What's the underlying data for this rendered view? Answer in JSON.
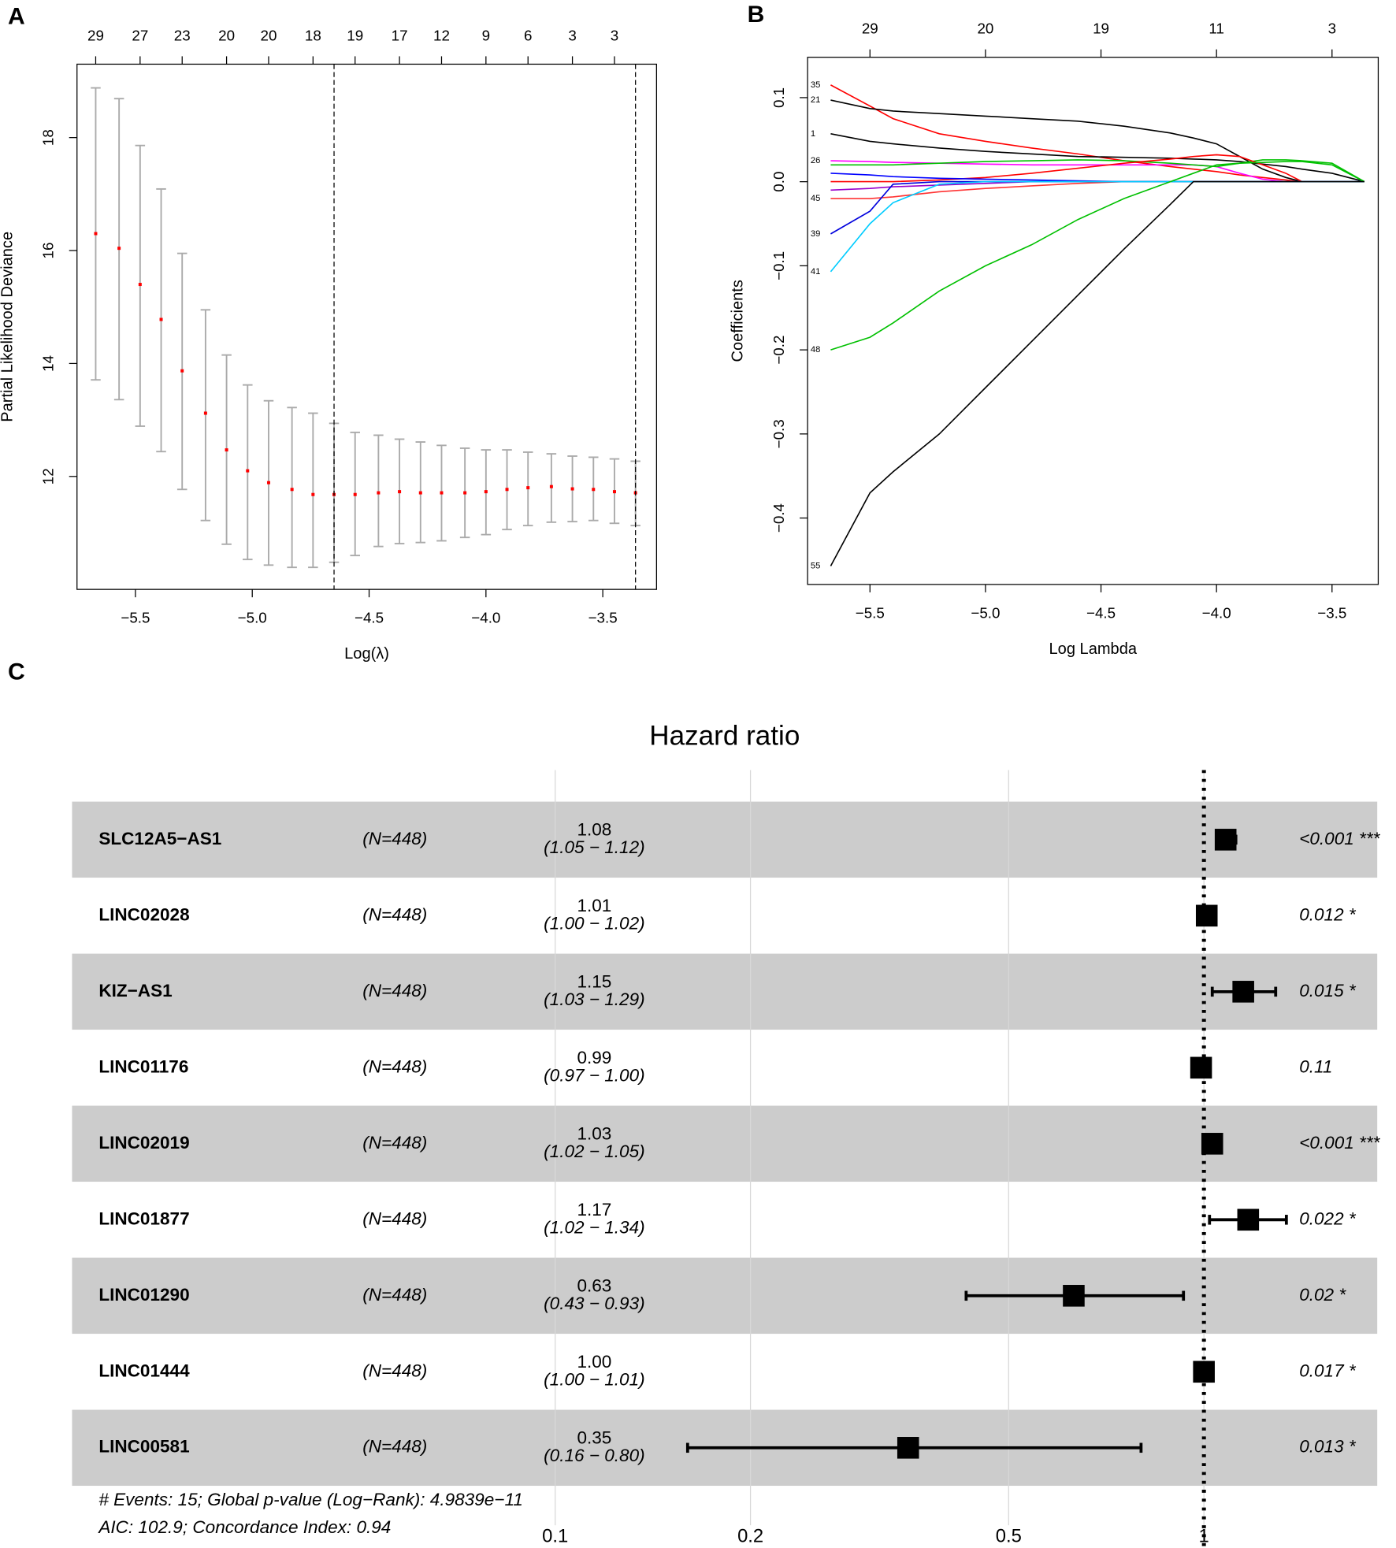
{
  "chart_data": [
    {
      "type": "errorbar",
      "panel": "A",
      "xlabel": "Log(λ)",
      "ylabel": "Partial Likelihood Deviance",
      "x": [
        -5.67,
        -5.57,
        -5.48,
        -5.39,
        -5.3,
        -5.2,
        -5.11,
        -5.02,
        -4.93,
        -4.83,
        -4.74,
        -4.65,
        -4.56,
        -4.46,
        -4.37,
        -4.28,
        -4.19,
        -4.09,
        -4.0,
        -3.91,
        -3.82,
        -3.72,
        -3.63,
        -3.54,
        -3.45,
        -3.36
      ],
      "values": [
        16.3,
        16.04,
        15.4,
        14.78,
        13.87,
        13.12,
        12.47,
        12.1,
        11.89,
        11.77,
        11.68,
        11.68,
        11.68,
        11.71,
        11.73,
        11.71,
        11.71,
        11.71,
        11.73,
        11.77,
        11.8,
        11.82,
        11.78,
        11.77,
        11.73,
        11.71
      ],
      "upper": [
        18.88,
        18.69,
        17.86,
        17.09,
        15.95,
        14.95,
        14.15,
        13.62,
        13.34,
        13.22,
        13.12,
        12.94,
        12.78,
        12.73,
        12.66,
        12.61,
        12.55,
        12.5,
        12.47,
        12.47,
        12.43,
        12.4,
        12.36,
        12.34,
        12.31,
        12.27
      ],
      "lower": [
        13.71,
        13.36,
        12.89,
        12.44,
        11.77,
        11.22,
        10.8,
        10.53,
        10.43,
        10.39,
        10.39,
        10.48,
        10.6,
        10.76,
        10.81,
        10.83,
        10.86,
        10.92,
        10.97,
        11.06,
        11.13,
        11.19,
        11.2,
        11.22,
        11.17,
        11.13
      ],
      "color": "#ff0000",
      "bar_color": "#aaaaaa",
      "xlim": [
        -5.75,
        -3.27
      ],
      "ylim": [
        10,
        19.3
      ],
      "xticks": [
        {
          "value": -5.5,
          "label": "−5.5"
        },
        {
          "value": -5.0,
          "label": "−5.0"
        },
        {
          "value": -4.5,
          "label": "−4.5"
        },
        {
          "value": -4.0,
          "label": "−4.0"
        },
        {
          "value": -3.5,
          "label": "−3.5"
        }
      ],
      "yticks": [
        12,
        14,
        16,
        18
      ],
      "x2ticks": [
        {
          "value": -5.67,
          "label": "29"
        },
        {
          "value": -5.48,
          "label": "27"
        },
        {
          "value": -5.3,
          "label": "23"
        },
        {
          "value": -5.11,
          "label": "20"
        },
        {
          "value": -4.93,
          "label": "20"
        },
        {
          "value": -4.74,
          "label": "18"
        },
        {
          "value": -4.56,
          "label": "19"
        },
        {
          "value": -4.37,
          "label": "17"
        },
        {
          "value": -4.19,
          "label": "12"
        },
        {
          "value": -4.0,
          "label": "9"
        },
        {
          "value": -3.82,
          "label": "6"
        },
        {
          "value": -3.63,
          "label": "3"
        },
        {
          "value": -3.45,
          "label": "3"
        }
      ],
      "vlines": [
        -4.65,
        -3.36
      ]
    },
    {
      "type": "line",
      "panel": "B",
      "xlabel": "Log Lambda",
      "ylabel": "Coefficients",
      "x": [
        -5.67,
        -5.5,
        -5.4,
        -5.2,
        -5.0,
        -4.8,
        -4.6,
        -4.4,
        -4.2,
        -4.1,
        -4.0,
        -3.9,
        -3.8,
        -3.7,
        -3.63,
        -3.5,
        -3.36
      ],
      "series": [
        {
          "name": "35",
          "color": "#ff0000",
          "values": [
            0.115,
            0.09,
            0.075,
            0.057,
            0.048,
            0.04,
            0.033,
            0.025,
            0.018,
            0.015,
            0.012,
            0.008,
            0.005,
            0.002,
            0,
            0,
            0
          ]
        },
        {
          "name": "21",
          "color": "#000000",
          "values": [
            0.097,
            0.087,
            0.084,
            0.081,
            0.078,
            0.075,
            0.072,
            0.066,
            0.058,
            0.052,
            0.045,
            0.03,
            0.015,
            0.005,
            0,
            0,
            0
          ]
        },
        {
          "name": "1",
          "color": "#000000",
          "values": [
            0.057,
            0.048,
            0.045,
            0.04,
            0.036,
            0.033,
            0.03,
            0.029,
            0.028,
            0.027,
            0.026,
            0.024,
            0.021,
            0.018,
            0.015,
            0.01,
            0
          ]
        },
        {
          "name": "26",
          "color": "#ff00ff",
          "values": [
            0.025,
            0.024,
            0.023,
            0.022,
            0.021,
            0.02,
            0.02,
            0.02,
            0.02,
            0.02,
            0.018,
            0.01,
            0.003,
            0,
            0,
            0,
            0
          ]
        },
        {
          "name": null,
          "color": "#00c000",
          "values": [
            0.02,
            0.02,
            0.02,
            0.022,
            0.024,
            0.025,
            0.026,
            0.025,
            0.022,
            0.02,
            0.018,
            0.022,
            0.026,
            0.026,
            0.025,
            0.022,
            0
          ]
        },
        {
          "name": null,
          "color": "#ff0000",
          "values": [
            0,
            0,
            0,
            0.002,
            0.005,
            0.01,
            0.016,
            0.022,
            0.027,
            0.03,
            0.032,
            0.03,
            0.02,
            0.01,
            0,
            0,
            0
          ]
        },
        {
          "name": null,
          "color": "#0000ff",
          "values": [
            0.01,
            0.008,
            0.006,
            0.004,
            0.003,
            0.002,
            0.001,
            0,
            0,
            0,
            0,
            0,
            0,
            0,
            0,
            0,
            0
          ]
        },
        {
          "name": null,
          "color": "#9900cc",
          "values": [
            -0.01,
            -0.008,
            -0.006,
            -0.004,
            -0.002,
            0,
            0,
            0,
            0,
            0,
            0,
            0,
            0,
            0,
            0,
            0,
            0
          ]
        },
        {
          "name": "45",
          "color": "#ff3333",
          "values": [
            -0.02,
            -0.02,
            -0.018,
            -0.012,
            -0.008,
            -0.005,
            -0.002,
            0,
            0,
            0,
            0,
            0,
            0,
            0,
            0,
            0,
            0
          ]
        },
        {
          "name": "39",
          "color": "#0000dd",
          "values": [
            -0.062,
            -0.035,
            -0.003,
            0,
            0,
            0,
            0,
            0,
            0,
            0,
            0,
            0,
            0,
            0,
            0,
            0,
            0
          ]
        },
        {
          "name": "41",
          "color": "#00ccff",
          "values": [
            -0.107,
            -0.05,
            -0.025,
            -0.003,
            0,
            0,
            0,
            0,
            0,
            0,
            0,
            0,
            0,
            0,
            0,
            0,
            0
          ]
        },
        {
          "name": "48",
          "color": "#00c000",
          "values": [
            -0.2,
            -0.185,
            -0.168,
            -0.13,
            -0.1,
            -0.075,
            -0.045,
            -0.02,
            0,
            0.01,
            0.02,
            0.022,
            0.023,
            0.024,
            0.024,
            0.02,
            0
          ]
        },
        {
          "name": "55",
          "color": "#000000",
          "values": [
            -0.457,
            -0.37,
            -0.345,
            -0.3,
            -0.245,
            -0.19,
            -0.135,
            -0.08,
            -0.027,
            0,
            0,
            0,
            0,
            0,
            0,
            0,
            0
          ]
        }
      ],
      "xlim": [
        -5.77,
        -3.3
      ],
      "ylim": [
        -0.479,
        0.148
      ],
      "xticks": [
        {
          "value": -5.5,
          "label": "−5.5"
        },
        {
          "value": -5.0,
          "label": "−5.0"
        },
        {
          "value": -4.5,
          "label": "−4.5"
        },
        {
          "value": -4.0,
          "label": "−4.0"
        },
        {
          "value": -3.5,
          "label": "−3.5"
        }
      ],
      "yticks": [
        {
          "value": -0.4,
          "label": "−0.4"
        },
        {
          "value": -0.3,
          "label": "−0.3"
        },
        {
          "value": -0.2,
          "label": "−0.2"
        },
        {
          "value": -0.1,
          "label": "−0.1"
        },
        {
          "value": 0.0,
          "label": "0.0"
        },
        0.1
      ],
      "x2ticks": [
        {
          "value": -5.5,
          "label": "29"
        },
        {
          "value": -5.0,
          "label": "20"
        },
        {
          "value": -4.5,
          "label": "19"
        },
        {
          "value": -4.0,
          "label": "11"
        },
        {
          "value": -3.5,
          "label": "3"
        }
      ]
    },
    {
      "type": "forest",
      "panel": "C",
      "title": "Hazard ratio",
      "categories": [
        "SLC12A5−AS1",
        "LINC02028",
        "KIZ−AS1",
        "LINC01176",
        "LINC02019",
        "LINC01877",
        "LINC01290",
        "LINC01444",
        "LINC00581"
      ],
      "n_labels": [
        "(N=448)",
        "(N=448)",
        "(N=448)",
        "(N=448)",
        "(N=448)",
        "(N=448)",
        "(N=448)",
        "(N=448)",
        "(N=448)"
      ],
      "values": [
        1.08,
        1.01,
        1.15,
        0.99,
        1.03,
        1.17,
        0.63,
        1.0,
        0.35
      ],
      "value_labels": [
        "1.08",
        "1.01",
        "1.15",
        "0.99",
        "1.03",
        "1.17",
        "0.63",
        "1.00",
        "0.35"
      ],
      "lower": [
        1.05,
        1.0,
        1.03,
        0.97,
        1.02,
        1.02,
        0.43,
        1.0,
        0.16
      ],
      "upper": [
        1.12,
        1.02,
        1.29,
        1.0,
        1.05,
        1.34,
        0.93,
        1.01,
        0.8
      ],
      "ci_labels": [
        "(1.05 − 1.12)",
        "(1.00 − 1.02)",
        "(1.03 − 1.29)",
        "(0.97 − 1.00)",
        "(1.02 − 1.05)",
        "(1.02 − 1.34)",
        "(0.43 − 0.93)",
        "(1.00 − 1.01)",
        "(0.16 − 0.80)"
      ],
      "p_labels": [
        "<0.001 ***",
        "0.012 *",
        "0.015 *",
        "0.11",
        "<0.001 ***",
        "0.022 *",
        "0.02 *",
        "0.017 *",
        "0.013 *"
      ],
      "xlim": [
        0.018,
        1.85
      ],
      "log_scale": true,
      "grid": true,
      "reference": 1,
      "xticks": [
        0.1,
        0.2,
        0.5,
        1
      ],
      "color": "#000000",
      "row_color": "#cccccc",
      "footnotes": [
        "# Events: 15; Global p-value (Log−Rank): 4.9839e−11",
        "AIC: 102.9; Concordance Index: 0.94"
      ]
    }
  ]
}
